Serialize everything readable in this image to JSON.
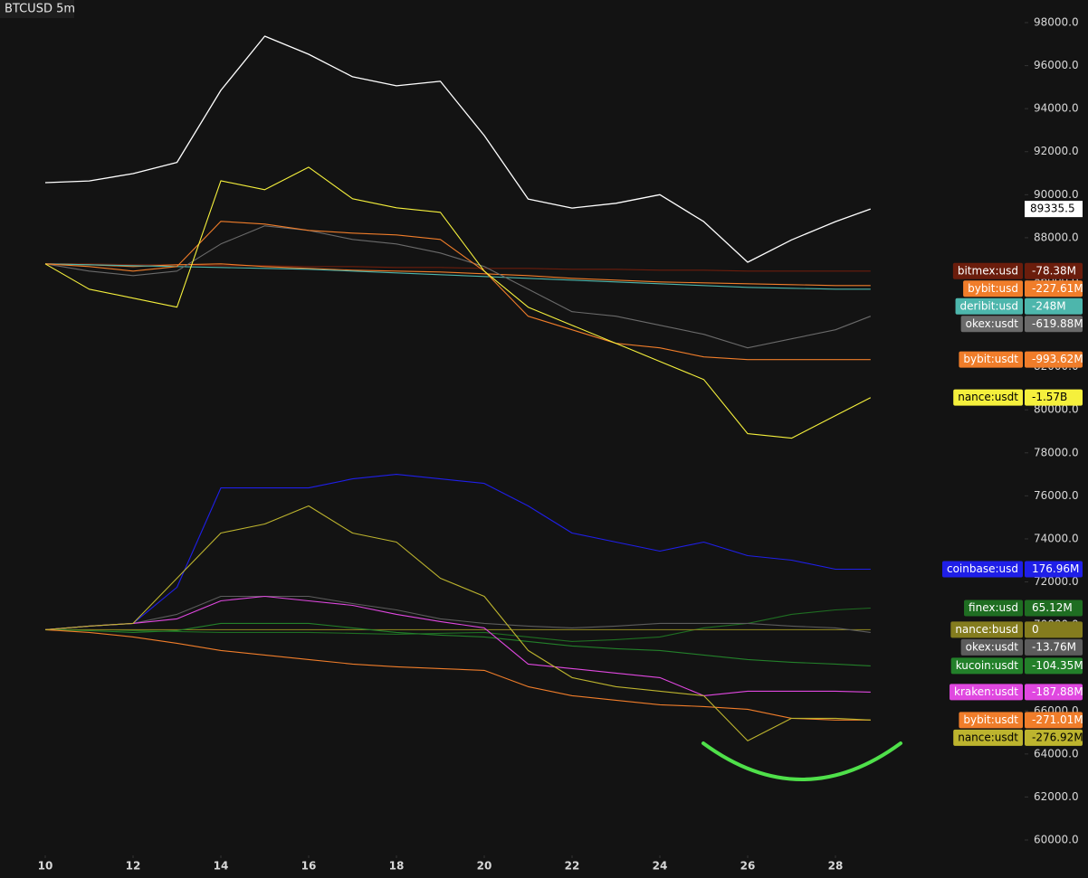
{
  "chart_data": {
    "type": "line",
    "title": "BTCUSD  5m",
    "x": [
      10,
      11,
      12,
      13,
      14,
      15,
      16,
      17,
      18,
      19,
      20,
      21,
      22,
      23,
      24,
      25,
      26,
      27,
      28,
      28.8
    ],
    "xlim": [
      10,
      30
    ],
    "xticks": [
      10,
      12,
      14,
      16,
      18,
      20,
      22,
      24,
      26,
      28
    ],
    "ylim": [
      60000,
      98000
    ],
    "yticks": [
      {
        "value": 60000,
        "label": "60000.0"
      },
      {
        "value": 62000,
        "label": "62000.0"
      },
      {
        "value": 64000,
        "label": "64000.0"
      },
      {
        "value": 66000,
        "label": "66000.0"
      },
      {
        "value": 68000,
        "label": "68000.0"
      },
      {
        "value": 70000,
        "label": "70000.0"
      },
      {
        "value": 72000,
        "label": "72000.0"
      },
      {
        "value": 74000,
        "label": "74000.0"
      },
      {
        "value": 76000,
        "label": "76000.0"
      },
      {
        "value": 78000,
        "label": "78000.0"
      },
      {
        "value": 80000,
        "label": "80000.0"
      },
      {
        "value": 82000,
        "label": "82000.0"
      },
      {
        "value": 84000,
        "label": "84000.0"
      },
      {
        "value": 86000,
        "label": "86000.0"
      },
      {
        "value": 88000,
        "label": "88000.0"
      },
      {
        "value": 90000,
        "label": "90000.0"
      },
      {
        "value": 92000,
        "label": "92000.0"
      },
      {
        "value": 94000,
        "label": "94000.0"
      },
      {
        "value": 96000,
        "label": "96000.0"
      },
      {
        "value": 98000,
        "label": "98000.0"
      }
    ],
    "grid": false,
    "series": [
      {
        "color": "#ffffff",
        "values": [
          90560,
          90640,
          90980,
          91500,
          94850,
          97370,
          96530,
          95480,
          95060,
          95270,
          92750,
          89800,
          89380,
          89600,
          90000,
          88750,
          86860,
          87900,
          88750,
          89335.5
        ]
      },
      {
        "name": "bitmex:usd",
        "tag": "-78.38M",
        "color": "#6b1d0c",
        "values": [
          86786,
          86786,
          86744,
          86744,
          86702,
          86702,
          86660,
          86660,
          86618,
          86618,
          86576,
          86576,
          86534,
          86534,
          86492,
          86492,
          86450,
          86450,
          86450,
          86450
        ]
      },
      {
        "name": "bybit:usd",
        "tag": "-227.61M",
        "color": "#f07d2a",
        "values": [
          86786,
          86744,
          86660,
          86744,
          86786,
          86660,
          86576,
          86492,
          86450,
          86408,
          86324,
          86240,
          86114,
          86030,
          85946,
          85904,
          85862,
          85820,
          85778,
          85778
        ]
      },
      {
        "name": "deribit:usd",
        "tag": "-248M",
        "color": "#4db6ac",
        "values": [
          86786,
          86744,
          86702,
          86660,
          86618,
          86576,
          86534,
          86450,
          86366,
          86282,
          86198,
          86114,
          86030,
          85946,
          85862,
          85778,
          85694,
          85652,
          85610,
          85610
        ]
      },
      {
        "name": "okex:usdt",
        "tag": "-619.88M",
        "color": "#6a6a6a",
        "values": [
          86786,
          86450,
          86240,
          86450,
          87710,
          88550,
          88340,
          87920,
          87710,
          87290,
          86660,
          85610,
          84560,
          84350,
          83930,
          83510,
          82880,
          83300,
          83720,
          84350
        ]
      },
      {
        "name": "bybit:usdt",
        "tag": "-993.62M",
        "color": "#f07d2a",
        "values": [
          86786,
          86660,
          86450,
          86660,
          88760,
          88634,
          88340,
          88214,
          88130,
          87920,
          86450,
          84350,
          83720,
          83090,
          82880,
          82460,
          82334,
          82334,
          82334,
          82334
        ]
      },
      {
        "name": "nance:usdt",
        "tag": "-1.57B",
        "color": "#f5f03c",
        "values": [
          86786,
          85610,
          85190,
          84770,
          90650,
          90230,
          91280,
          89810,
          89390,
          89180,
          86450,
          84770,
          83930,
          83090,
          82250,
          81410,
          78890,
          78680,
          79730,
          80570
        ]
      },
      {
        "name": "coinbase:usd",
        "tag": "176.96M",
        "color": "#1f1fe8",
        "values": [
          69776,
          69944,
          70070,
          71750,
          76370,
          76370,
          76370,
          76790,
          77000,
          76790,
          76580,
          75530,
          74270,
          73850,
          73430,
          73850,
          73220,
          73010,
          72590,
          72590
        ]
      },
      {
        "name": "finex:usd",
        "tag": "65.12M",
        "color": "#1f6e22",
        "values": [
          69776,
          69776,
          69734,
          69692,
          69650,
          69650,
          69650,
          69608,
          69566,
          69608,
          69650,
          69440,
          69230,
          69314,
          69440,
          69860,
          70070,
          70490,
          70700,
          70784
        ]
      },
      {
        "name": "nance:busd",
        "tag": "0",
        "color": "#847c1e",
        "values": [
          69776,
          69776,
          69776,
          69776,
          69776,
          69776,
          69776,
          69776,
          69776,
          69776,
          69776,
          69776,
          69776,
          69776,
          69776,
          69776,
          69776,
          69776,
          69776,
          69776
        ]
      },
      {
        "name": "okex:usdt",
        "tag": "-13.76M",
        "color": "#5c5c5c",
        "values": [
          69776,
          69944,
          70070,
          70490,
          71330,
          71330,
          71330,
          70994,
          70700,
          70280,
          70070,
          69944,
          69860,
          69944,
          70070,
          70070,
          70070,
          69944,
          69860,
          69650
        ]
      },
      {
        "name": "kucoin:usdt",
        "tag": "-104.35M",
        "color": "#23802a",
        "values": [
          69776,
          69734,
          69650,
          69734,
          70070,
          70070,
          70070,
          69860,
          69650,
          69524,
          69440,
          69230,
          69020,
          68894,
          68810,
          68600,
          68390,
          68264,
          68180,
          68096
        ]
      },
      {
        "name": "kraken:usdt",
        "tag": "-187.88M",
        "color": "#e048e0",
        "values": [
          69776,
          69944,
          70070,
          70280,
          71120,
          71330,
          71120,
          70910,
          70490,
          70154,
          69860,
          68180,
          67970,
          67760,
          67550,
          66710,
          66920,
          66920,
          66920,
          66878
        ]
      },
      {
        "name": "bybit:usdt",
        "tag": "-271.01M",
        "color": "#f07d2a",
        "values": [
          69776,
          69650,
          69440,
          69146,
          68810,
          68600,
          68390,
          68180,
          68054,
          67970,
          67886,
          67130,
          66710,
          66500,
          66290,
          66206,
          66080,
          65660,
          65576,
          65576
        ]
      },
      {
        "name": "nance:usdt",
        "tag": "-276.92M",
        "color": "#bdb42e",
        "values": [
          69776,
          69944,
          70070,
          72170,
          74270,
          74690,
          75530,
          74270,
          73850,
          72170,
          71330,
          68810,
          67550,
          67130,
          66920,
          66710,
          64610,
          65660,
          65660,
          65576
        ]
      }
    ]
  }
}
